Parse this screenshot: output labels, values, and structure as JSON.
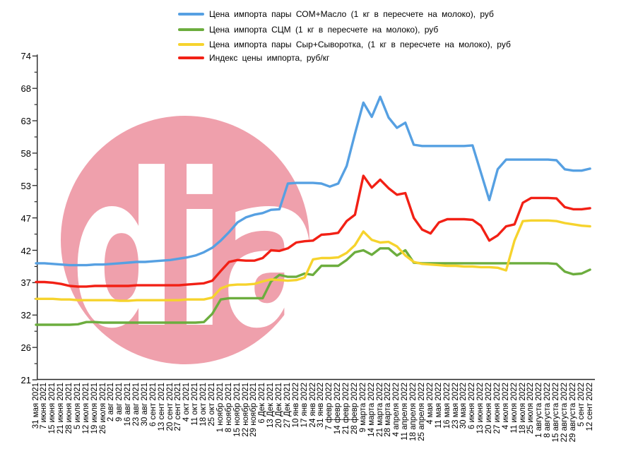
{
  "watermark": {
    "text": "dia",
    "circle_color": "#efa0ac",
    "text_color": "#ffffff"
  },
  "legend": {
    "items": [
      {
        "label": "Цена импорта пары СОМ+Масло  (1 кг в пересчете на молоко),  руб",
        "color": "#56a0e2"
      },
      {
        "label": "Цена импорта СЦМ  (1 кг в пересчете на молоко), руб",
        "color": "#6cad3e"
      },
      {
        "label": "Цена импорта пары Сыр+Сыворотка,  (1 кг в пересчете на молоко), руб",
        "color": "#f6d32d"
      },
      {
        "label": "Индекс цены импорта, руб/кг",
        "color": "#f22015"
      }
    ]
  },
  "chart_data": {
    "type": "line",
    "grid": false,
    "legend_position": "top",
    "ylim": [
      21,
      74
    ],
    "y_ticks": [
      74,
      68,
      63,
      58,
      53,
      47,
      42,
      37,
      32,
      26,
      21
    ],
    "x": [
      "31 мая 2021",
      "7 июня 2021",
      "15 июня 2021",
      "21 июня 2021",
      "28 июня 2021",
      "5 июля 2021",
      "12 июля 2021",
      "19 июля 2021",
      "26 июля 2021",
      "2 авг 2021",
      "9 авг 2021",
      "16 авг 2021",
      "23 авг 2021",
      "30 авг 2021",
      "6 сент 2021",
      "13 сент 2021",
      "20 сент 2021",
      "27 сент 2021",
      "4 окт 2021",
      "11 окт 2021",
      "18 окт 2021",
      "25 окт 2021",
      "1 ноябр 2021",
      "8 ноябр 2021",
      "15 ноябр 2021",
      "22 ноябр 2021",
      "29 ноябр 2021",
      "6 Дек 2021",
      "13 Дек 2021",
      "20 Дек 2021",
      "27 Дек 2021",
      "10 янв 2022",
      "17 янв 2022",
      "24 янв 2022",
      "31 янв 2022",
      "7 февр 2022",
      "14 февр 2022",
      "21 февр 2022",
      "28 февр 2022",
      "9 марта 2022",
      "14 марта 2022",
      "21 марта 2022",
      "28 марта 2022",
      "4 апреля 2022",
      "11 апреля 2022",
      "18 апреля 2022",
      "25 апреля 2022",
      "4 мая 2022",
      "11 мая 2022",
      "16 мая 2022",
      "23 мая 2022",
      "30 мая 2022",
      "6 июня 2022",
      "13 июня 2022",
      "20 июня 2022",
      "27 июня 2022",
      "4 июля 2022",
      "11 июля 2022",
      "18 июля 2022",
      "25 июля 2022",
      "1 августа 2022",
      "8 августа 2022",
      "15 августа 2022",
      "22 августа 2022",
      "29 августа 2022",
      "5 сент 2022",
      "12 сент 2022"
    ],
    "series": [
      {
        "name": "Цена импорта пары СОМ+Масло  (1 кг в пересчете на молоко),  руб",
        "color": "#56a0e2",
        "values": [
          40.0,
          40.0,
          39.9,
          39.8,
          39.7,
          39.7,
          39.7,
          39.8,
          39.8,
          39.9,
          40.0,
          40.1,
          40.2,
          40.2,
          40.3,
          40.4,
          40.5,
          40.7,
          40.9,
          41.2,
          41.7,
          42.4,
          43.5,
          44.8,
          46.3,
          47.1,
          47.6,
          47.9,
          48.5,
          48.6,
          53.3,
          53.4,
          53.4,
          53.4,
          53.3,
          52.8,
          53.3,
          56.0,
          61.0,
          65.8,
          63.6,
          66.7,
          63.5,
          61.9,
          62.7,
          59.3,
          59.1,
          59.1,
          59.1,
          59.1,
          59.1,
          59.1,
          59.2,
          55.0,
          50.3,
          55.5,
          57.0,
          57.0,
          57.0,
          57.0,
          57.0,
          57.0,
          56.9,
          55.5,
          55.3,
          55.3,
          55.6
        ]
      },
      {
        "name": "Цена импорта СЦМ  (1 кг в пересчете на молоко), руб",
        "color": "#6cad3e",
        "values": [
          30.2,
          30.2,
          30.2,
          30.2,
          30.2,
          30.3,
          30.7,
          30.7,
          30.6,
          30.6,
          30.6,
          30.6,
          30.6,
          30.6,
          30.6,
          30.6,
          30.6,
          30.6,
          30.6,
          30.6,
          30.7,
          32.2,
          34.4,
          34.6,
          34.6,
          34.6,
          34.6,
          34.6,
          37.2,
          38.2,
          37.9,
          37.9,
          38.4,
          38.2,
          39.6,
          39.6,
          39.6,
          40.5,
          41.7,
          42.0,
          41.3,
          42.3,
          42.3,
          41.2,
          42.0,
          40.1,
          40.0,
          40.0,
          40.0,
          40.0,
          40.0,
          40.0,
          40.0,
          40.0,
          40.0,
          40.0,
          40.0,
          40.0,
          40.0,
          40.0,
          40.0,
          40.0,
          39.9,
          38.7,
          38.3,
          38.4,
          39.0
        ]
      },
      {
        "name": "Цена импорта пары Сыр+Сыворотка,  (1 кг в пересчете на молоко), руб",
        "color": "#f6d32d",
        "values": [
          34.5,
          34.5,
          34.5,
          34.4,
          34.4,
          34.3,
          34.3,
          34.3,
          34.3,
          34.3,
          34.2,
          34.2,
          34.3,
          34.3,
          34.3,
          34.3,
          34.3,
          34.3,
          34.4,
          34.4,
          34.4,
          34.7,
          36.1,
          36.6,
          36.7,
          36.7,
          36.8,
          37.2,
          37.5,
          37.4,
          37.3,
          37.4,
          37.8,
          40.6,
          40.8,
          40.8,
          40.9,
          41.6,
          42.8,
          44.9,
          43.6,
          43.2,
          43.3,
          42.6,
          41.2,
          40.2,
          39.9,
          39.8,
          39.7,
          39.6,
          39.6,
          39.5,
          39.5,
          39.4,
          39.4,
          39.3,
          38.9,
          43.5,
          46.5,
          46.6,
          46.6,
          46.6,
          46.5,
          46.2,
          46.0,
          45.8,
          45.7
        ]
      },
      {
        "name": "Индекс цены импорта, руб/кг",
        "color": "#f22015",
        "values": [
          37.1,
          37.1,
          37.0,
          36.8,
          36.5,
          36.4,
          36.4,
          36.5,
          36.5,
          36.5,
          36.5,
          36.5,
          36.6,
          36.6,
          36.6,
          36.6,
          36.6,
          36.6,
          36.7,
          36.8,
          36.9,
          37.3,
          38.8,
          40.2,
          40.5,
          40.4,
          40.4,
          40.8,
          42.0,
          41.9,
          42.3,
          43.2,
          43.4,
          43.5,
          44.4,
          44.5,
          44.7,
          46.5,
          47.6,
          54.5,
          52.6,
          53.9,
          52.5,
          51.3,
          51.6,
          47.0,
          45.2,
          44.6,
          46.3,
          46.8,
          46.8,
          46.8,
          46.7,
          45.8,
          43.5,
          44.3,
          45.7,
          46.0,
          49.8,
          50.7,
          50.7,
          50.7,
          50.6,
          49.0,
          48.6,
          48.6,
          48.8
        ]
      }
    ]
  }
}
